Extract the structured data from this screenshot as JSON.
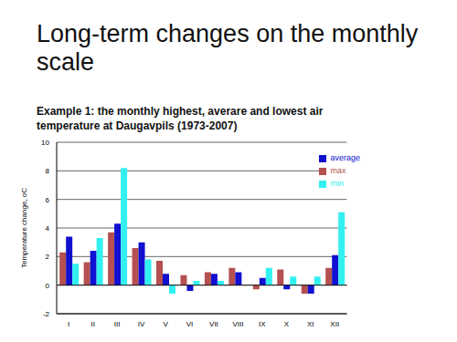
{
  "title": "Long-term changes on the monthly scale",
  "subtitle": "Example 1: the monthly highest, averare and lowest air temperature at Daugavpils (1973-2007)",
  "chart_data": {
    "type": "bar",
    "y_label": "Temperature change, oC",
    "categories": [
      "I",
      "II",
      "III",
      "IV",
      "V",
      "VI",
      "VII",
      "VIII",
      "IX",
      "X",
      "XI",
      "XII"
    ],
    "series": [
      {
        "name": "max",
        "color": "#b4504f",
        "values": [
          2.3,
          1.6,
          3.7,
          2.6,
          1.7,
          0.7,
          0.9,
          1.2,
          -0.3,
          1.1,
          -0.6,
          1.2
        ]
      },
      {
        "name": "average",
        "color": "#1010d0",
        "values": [
          3.4,
          2.4,
          4.3,
          3.0,
          0.8,
          -0.4,
          0.8,
          0.9,
          0.5,
          -0.3,
          -0.6,
          2.1
        ]
      },
      {
        "name": "min",
        "color": "#33f0f0",
        "values": [
          1.5,
          3.3,
          8.2,
          1.8,
          -0.6,
          0.3,
          0.3,
          0.0,
          1.2,
          0.6,
          0.6,
          5.1
        ]
      }
    ],
    "ylim": [
      -2,
      10
    ],
    "yticks": [
      -2,
      0,
      2,
      4,
      6,
      8,
      10
    ],
    "grid": true,
    "legend": "top-right"
  }
}
